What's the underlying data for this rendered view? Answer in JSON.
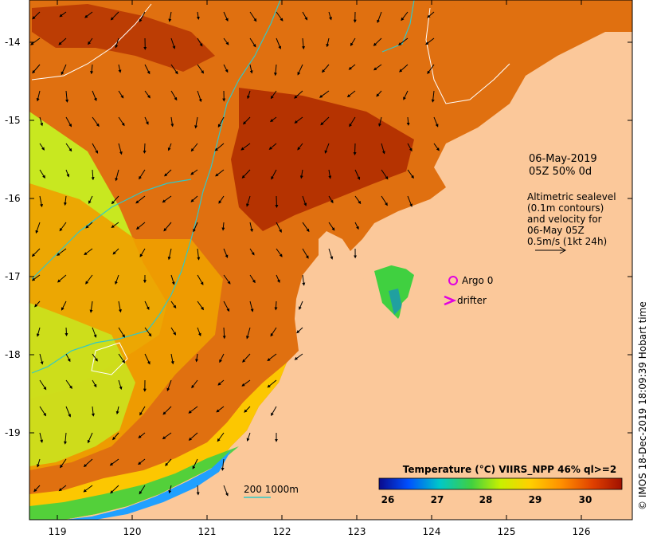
{
  "map": {
    "date_label": "06-May-2019",
    "time_label": "05Z  50% 0d",
    "altimetry_lines": [
      "Altimetric sealevel",
      "(0.1m contours)",
      "and velocity for",
      "06-May 05Z",
      "0.5m/s (1kt 24h)"
    ],
    "argo_label": "Argo 0",
    "drifter_label": "drifter",
    "bathy_label": "200  1000m",
    "credit": "© IMOS 18-Dec-2019 18:09:39 Hobart time",
    "y_ticks": [
      "-14",
      "-15",
      "-16",
      "-17",
      "-18",
      "-19"
    ],
    "x_ticks": [
      "119",
      "120",
      "121",
      "122",
      "123",
      "124",
      "125",
      "126"
    ],
    "colorbar": {
      "title": "Temperature (°C) VIIRS_NPP 46% ql>=2",
      "ticks": [
        "26",
        "27",
        "28",
        "29",
        "30"
      ],
      "colors": [
        "#0a0a8c",
        "#0050ff",
        "#00c8c8",
        "#40d040",
        "#c8f000",
        "#ffd000",
        "#ff9000",
        "#e04000",
        "#a01000"
      ]
    },
    "colors": {
      "land": "#fbc89a",
      "ocean_warm": "#e07010",
      "ocean_hot": "#b02c00",
      "ocean_mid": "#f0a000",
      "ocean_cool": "#c8e820",
      "shelf_cold": "#20a0ff",
      "bathy_contour": "#30c8c8",
      "sealevel_contour": "#ffffff",
      "argo": "#e000e0"
    }
  }
}
